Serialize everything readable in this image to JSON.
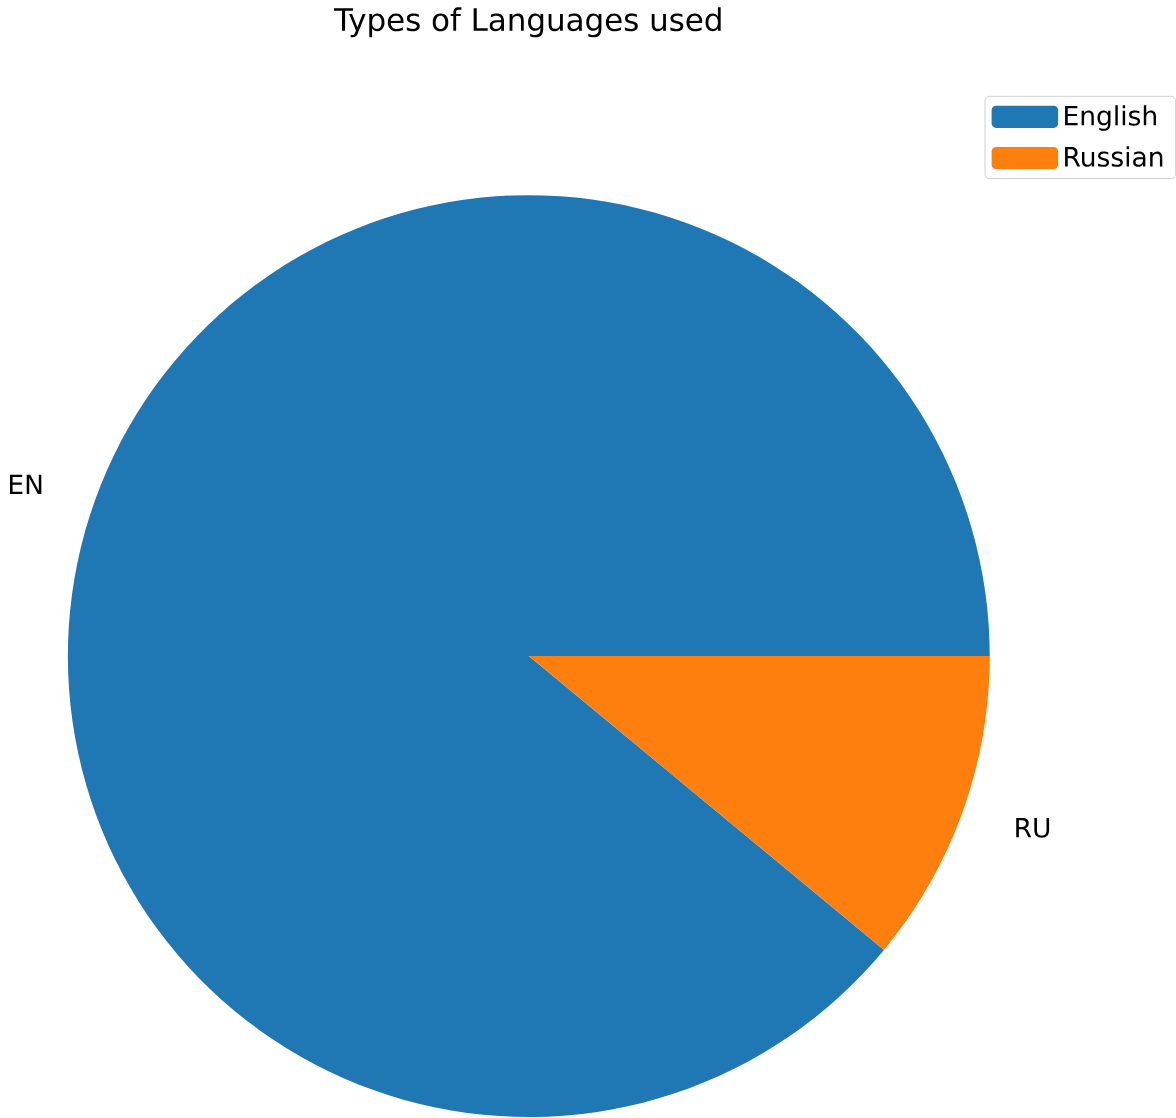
{
  "chart_data": {
    "type": "pie",
    "title": "Types of Languages used",
    "categories": [
      "English",
      "Russian"
    ],
    "values": [
      89,
      11
    ],
    "colors": [
      "#1f77b4",
      "#ff7f0e"
    ],
    "legend": "top right",
    "annotations": [
      "EN",
      "RU"
    ]
  }
}
